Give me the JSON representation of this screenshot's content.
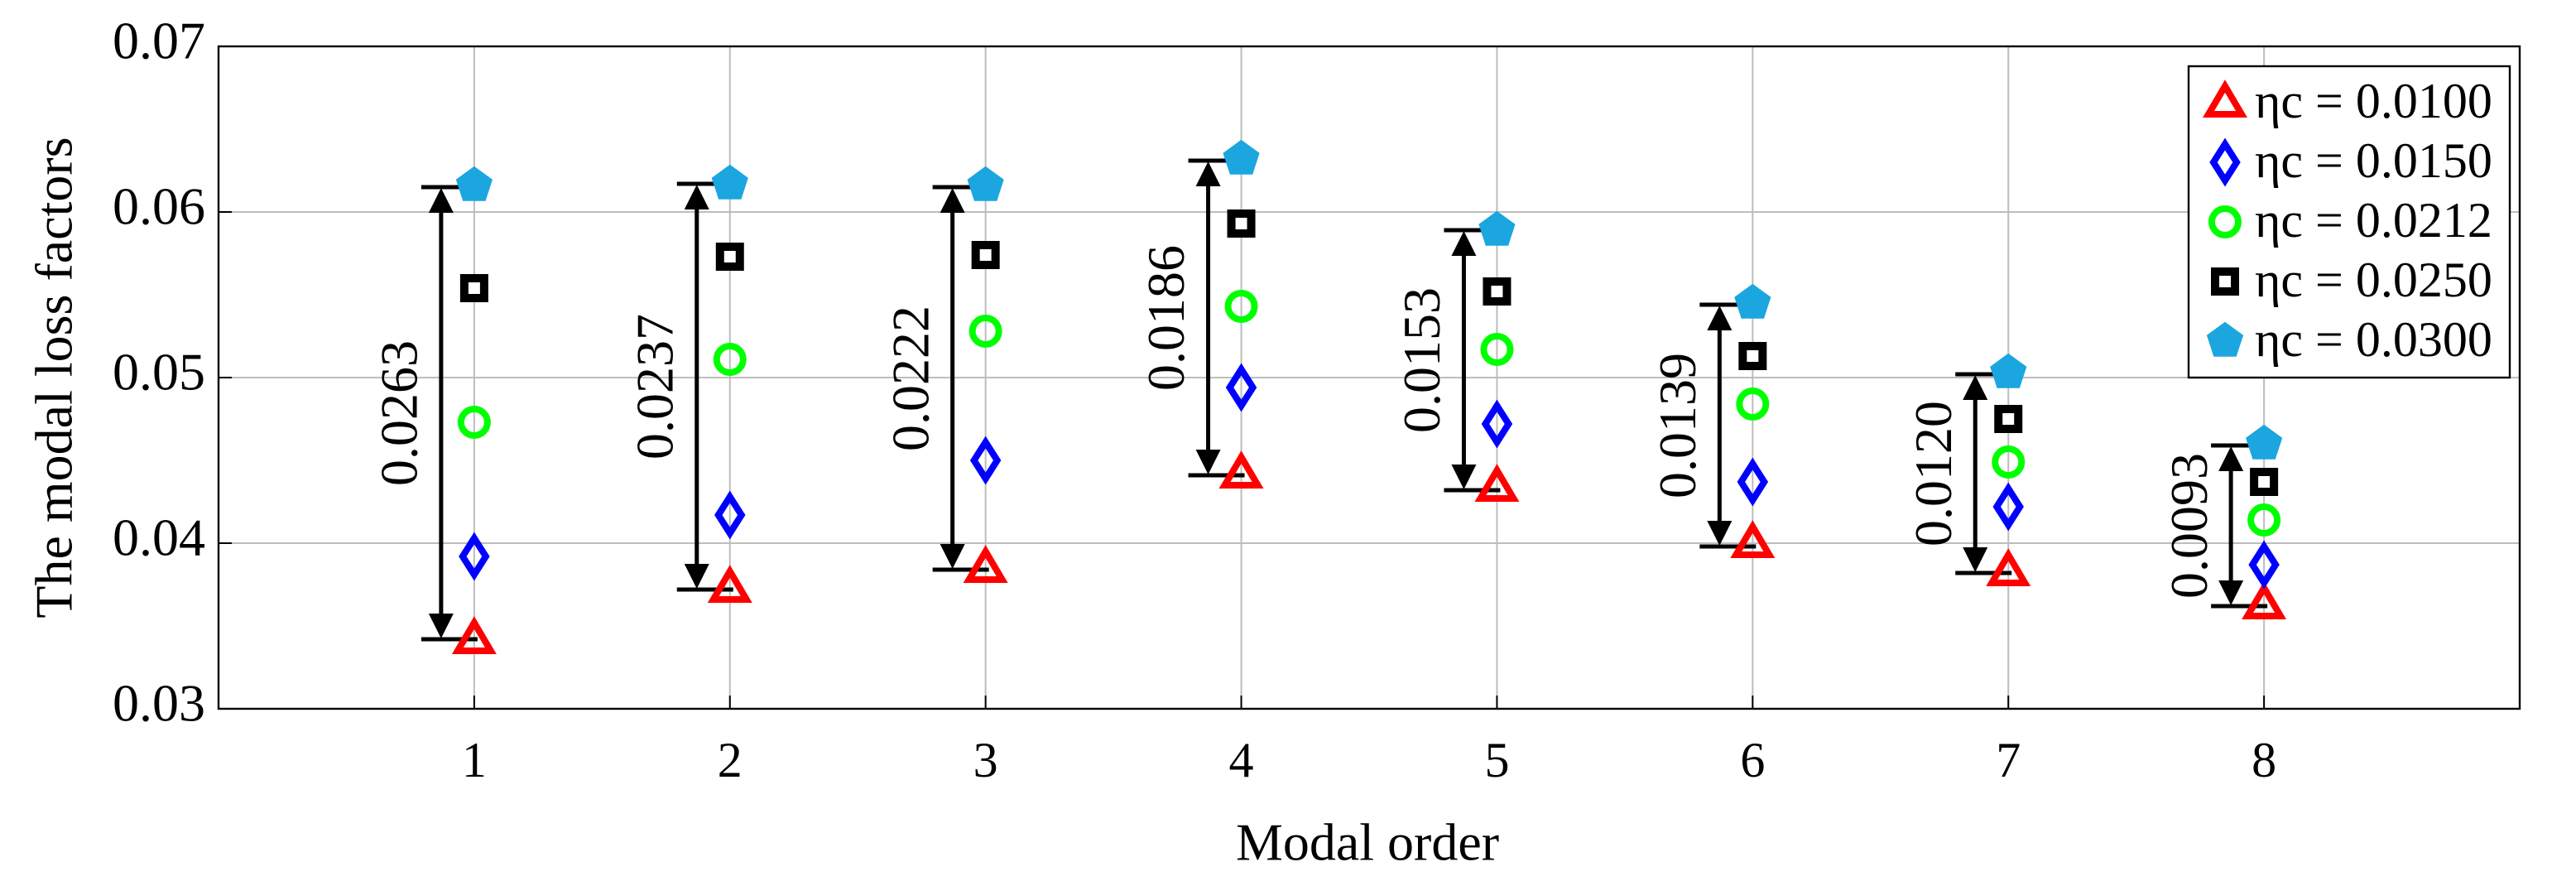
{
  "chart_data": {
    "type": "scatter",
    "x_label": "Modal order",
    "y_label": "The modal loss factors",
    "x": [
      1,
      2,
      3,
      4,
      5,
      6,
      7,
      8
    ],
    "xlim": [
      0,
      9
    ],
    "xticks": [
      1,
      2,
      3,
      4,
      5,
      6,
      7,
      8
    ],
    "ylim": [
      0.03,
      0.07
    ],
    "yticks": [
      0.03,
      {
        "value": 0.04,
        "label": "0.04"
      },
      {
        "value": 0.05,
        "label": "0.05"
      },
      {
        "value": 0.06,
        "label": "0.06"
      },
      0.07
    ],
    "grid": true,
    "legend": "upper right",
    "series": [
      {
        "name": "ηc = 0.0100",
        "color": "#ff0000",
        "marker": "triangle",
        "values": [
          0.0342,
          0.0373,
          0.0385,
          0.0442,
          0.0434,
          0.04,
          0.0383,
          0.0363
        ]
      },
      {
        "name": "ηc = 0.0150",
        "color": "#0000ff",
        "marker": "diamond",
        "values": [
          0.0392,
          0.0417,
          0.045,
          0.0494,
          0.0472,
          0.0437,
          0.0422,
          0.0387
        ]
      },
      {
        "name": "ηc = 0.0212",
        "color": "#00ff00",
        "marker": "circle",
        "values": [
          0.0473,
          0.0511,
          0.0528,
          0.0543,
          0.0517,
          0.0484,
          0.0449,
          0.0414
        ]
      },
      {
        "name": "ηc = 0.0250",
        "color": "#000000",
        "marker": "square",
        "values": [
          0.0554,
          0.0573,
          0.0574,
          0.0593,
          0.0552,
          0.0513,
          0.0475,
          0.0437
        ]
      },
      {
        "name": "ηc = 0.0300",
        "color": "#1ba6e0",
        "marker": "pentagon",
        "values": [
          0.0616,
          0.0617,
          0.0616,
          0.0632,
          0.0589,
          0.0545,
          0.0503,
          0.046
        ]
      }
    ],
    "annotations": [
      {
        "x": 1,
        "low": 0.0342,
        "high": 0.0615,
        "text": "0.0263"
      },
      {
        "x": 2,
        "low": 0.0372,
        "high": 0.0617,
        "text": "0.0237"
      },
      {
        "x": 3,
        "low": 0.0384,
        "high": 0.0615,
        "text": "0.0222"
      },
      {
        "x": 4,
        "low": 0.0441,
        "high": 0.0631,
        "text": "0.0186"
      },
      {
        "x": 5,
        "low": 0.0432,
        "high": 0.0589,
        "text": "0.0153"
      },
      {
        "x": 6,
        "low": 0.0398,
        "high": 0.0544,
        "text": "0.0139"
      },
      {
        "x": 7,
        "low": 0.0382,
        "high": 0.0502,
        "text": "0.0120"
      },
      {
        "x": 8,
        "low": 0.0362,
        "high": 0.0459,
        "text": "0.0093"
      }
    ]
  }
}
